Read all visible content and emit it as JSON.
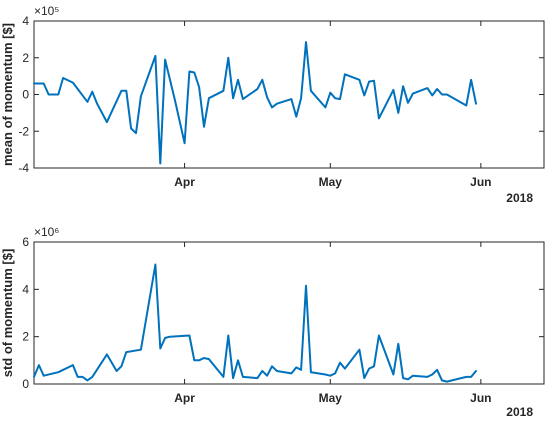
{
  "chart_data": [
    {
      "type": "line",
      "ylabel": "mean of momentum [$]",
      "exponent_label": "×10⁵",
      "exponent": 5,
      "ylim": [
        -4,
        4
      ],
      "yticks": [
        -4,
        -2,
        0,
        2,
        4
      ],
      "ytick_labels": [
        "-4",
        "-2",
        "0",
        "2",
        "4"
      ],
      "xlim": [
        "2018-03-01",
        "2018-06-14"
      ],
      "xticks": [
        "2018-04-01",
        "2018-05-01",
        "2018-06-01"
      ],
      "xtick_labels": [
        "Apr",
        "May",
        "Jun"
      ],
      "year_label": "2018",
      "grid": false,
      "color": "#0072BD",
      "series": [
        {
          "x": [
            "2018-03-01",
            "2018-03-03",
            "2018-03-04",
            "2018-03-06",
            "2018-03-07",
            "2018-03-09",
            "2018-03-12",
            "2018-03-13",
            "2018-03-14",
            "2018-03-16",
            "2018-03-19",
            "2018-03-20",
            "2018-03-21",
            "2018-03-22",
            "2018-03-23",
            "2018-03-26",
            "2018-03-27",
            "2018-03-28",
            "2018-03-30",
            "2018-04-01",
            "2018-04-02",
            "2018-04-03",
            "2018-04-04",
            "2018-04-05",
            "2018-04-06",
            "2018-04-09",
            "2018-04-10",
            "2018-04-11",
            "2018-04-12",
            "2018-04-13",
            "2018-04-16",
            "2018-04-17",
            "2018-04-18",
            "2018-04-19",
            "2018-04-20",
            "2018-04-23",
            "2018-04-24",
            "2018-04-25",
            "2018-04-26",
            "2018-04-27",
            "2018-04-30",
            "2018-05-01",
            "2018-05-02",
            "2018-05-03",
            "2018-05-04",
            "2018-05-07",
            "2018-05-08",
            "2018-05-09",
            "2018-05-10",
            "2018-05-11",
            "2018-05-14",
            "2018-05-15",
            "2018-05-16",
            "2018-05-17",
            "2018-05-18",
            "2018-05-21",
            "2018-05-22",
            "2018-05-23",
            "2018-05-24",
            "2018-05-25",
            "2018-05-29",
            "2018-05-30",
            "2018-05-31"
          ],
          "y": [
            0.6,
            0.6,
            0,
            0,
            0.9,
            0.65,
            -0.4,
            0.15,
            -0.5,
            -1.5,
            0.2,
            0.2,
            -1.85,
            -2.1,
            -0.1,
            2.1,
            -3.75,
            1.9,
            -0.3,
            -2.65,
            1.25,
            1.2,
            0.4,
            -1.75,
            -0.2,
            0.2,
            2,
            -0.2,
            0.8,
            -0.25,
            0.3,
            0.8,
            -0.15,
            -0.7,
            -0.5,
            -0.25,
            -1.2,
            -0.2,
            2.85,
            0.2,
            -0.7,
            0.1,
            -0.2,
            -0.25,
            1.1,
            0.8,
            -0.05,
            0.7,
            0.75,
            -1.3,
            0.25,
            -1,
            0.45,
            -0.45,
            0.05,
            0.35,
            -0.05,
            0.3,
            0,
            0,
            -0.6,
            0.8,
            -0.5
          ]
        }
      ]
    },
    {
      "type": "line",
      "ylabel": "std of momentum [$]",
      "exponent_label": "×10⁶",
      "exponent": 6,
      "ylim": [
        0,
        6
      ],
      "yticks": [
        0,
        2,
        4,
        6
      ],
      "ytick_labels": [
        "0",
        "2",
        "4",
        "6"
      ],
      "xlim": [
        "2018-03-01",
        "2018-06-14"
      ],
      "xticks": [
        "2018-04-01",
        "2018-05-01",
        "2018-06-01"
      ],
      "xtick_labels": [
        "Apr",
        "May",
        "Jun"
      ],
      "year_label": "2018",
      "grid": false,
      "color": "#0072BD",
      "series": [
        {
          "x": [
            "2018-03-01",
            "2018-03-02",
            "2018-03-03",
            "2018-03-06",
            "2018-03-09",
            "2018-03-10",
            "2018-03-11",
            "2018-03-12",
            "2018-03-13",
            "2018-03-16",
            "2018-03-18",
            "2018-03-19",
            "2018-03-20",
            "2018-03-23",
            "2018-03-26",
            "2018-03-27",
            "2018-03-28",
            "2018-03-29",
            "2018-04-02",
            "2018-04-03",
            "2018-04-04",
            "2018-04-05",
            "2018-04-06",
            "2018-04-09",
            "2018-04-10",
            "2018-04-11",
            "2018-04-12",
            "2018-04-13",
            "2018-04-16",
            "2018-04-17",
            "2018-04-18",
            "2018-04-19",
            "2018-04-20",
            "2018-04-23",
            "2018-04-24",
            "2018-04-25",
            "2018-04-26",
            "2018-04-27",
            "2018-04-30",
            "2018-05-01",
            "2018-05-02",
            "2018-05-03",
            "2018-05-04",
            "2018-05-07",
            "2018-05-08",
            "2018-05-09",
            "2018-05-10",
            "2018-05-11",
            "2018-05-14",
            "2018-05-15",
            "2018-05-16",
            "2018-05-17",
            "2018-05-18",
            "2018-05-21",
            "2018-05-22",
            "2018-05-23",
            "2018-05-24",
            "2018-05-25",
            "2018-05-29",
            "2018-05-30",
            "2018-05-31"
          ],
          "y": [
            0.3,
            0.8,
            0.35,
            0.5,
            0.8,
            0.3,
            0.3,
            0.15,
            0.3,
            1.25,
            0.55,
            0.75,
            1.35,
            1.45,
            5.05,
            1.5,
            1.95,
            2,
            2.05,
            1,
            1,
            1.1,
            1.05,
            0.3,
            2.05,
            0.25,
            1,
            0.3,
            0.25,
            0.55,
            0.35,
            0.75,
            0.55,
            0.45,
            0.7,
            0.6,
            4.15,
            0.5,
            0.4,
            0.35,
            0.45,
            0.9,
            0.65,
            1.45,
            0.25,
            0.65,
            0.75,
            2.05,
            0.4,
            1.7,
            0.25,
            0.2,
            0.35,
            0.3,
            0.4,
            0.6,
            0.15,
            0.1,
            0.3,
            0.3,
            0.55
          ]
        }
      ]
    }
  ]
}
